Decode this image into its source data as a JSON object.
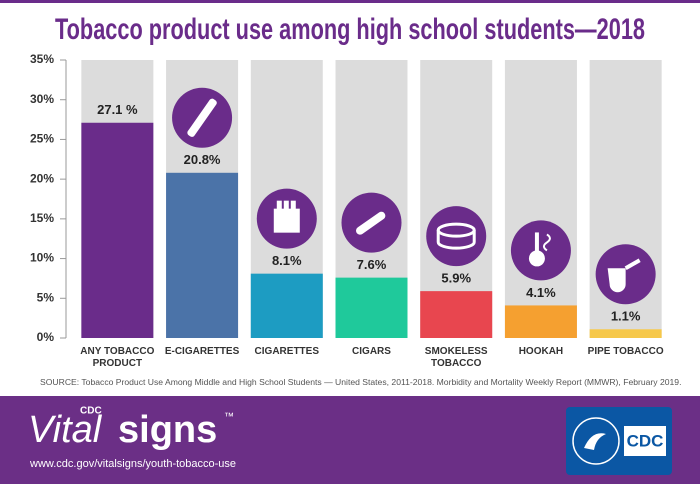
{
  "chart_data": {
    "type": "bar",
    "title": "Tobacco product use among high school students—2018",
    "categories": [
      "ANY TOBACCO PRODUCT",
      "E-CIGARETTES",
      "CIGARETTES",
      "CIGARS",
      "SMOKELESS TOBACCO",
      "HOOKAH",
      "PIPE TOBACCO"
    ],
    "values": [
      27.1,
      20.8,
      8.1,
      7.6,
      5.9,
      4.1,
      1.1
    ],
    "value_labels": [
      "27.1 %",
      "20.8%",
      "8.1%",
      "7.6%",
      "5.9%",
      "4.1%",
      "1.1%"
    ],
    "colors": [
      "#6a2c8a",
      "#4b73a8",
      "#1d9cc2",
      "#1fc99b",
      "#e8464f",
      "#f5a030",
      "#f6c84a"
    ],
    "ylim": [
      0,
      35
    ],
    "yticks": [
      {
        "value": 0,
        "label": "0%"
      },
      {
        "value": 5,
        "label": "5%"
      },
      {
        "value": 10,
        "label": "10%"
      },
      {
        "value": 15,
        "label": "15%"
      },
      {
        "value": 20,
        "label": "20%"
      },
      {
        "value": 25,
        "label": "25%"
      },
      {
        "value": 30,
        "label": "30%"
      },
      {
        "value": 35,
        "label": "35%"
      }
    ],
    "grid": false,
    "source": "SOURCE: Tobacco Product Use Among Middle and High School Students — United States, 2011-2018. Morbidity and Mortality Weekly Report (MMWR), February 2019."
  },
  "footer": {
    "cdc": "CDC",
    "brand_vital": "Vital",
    "brand_signs": "signs",
    "trademark": "™",
    "url": "www.cdc.gov/vitalsigns/youth-tobacco-use",
    "logo": "CDC"
  }
}
